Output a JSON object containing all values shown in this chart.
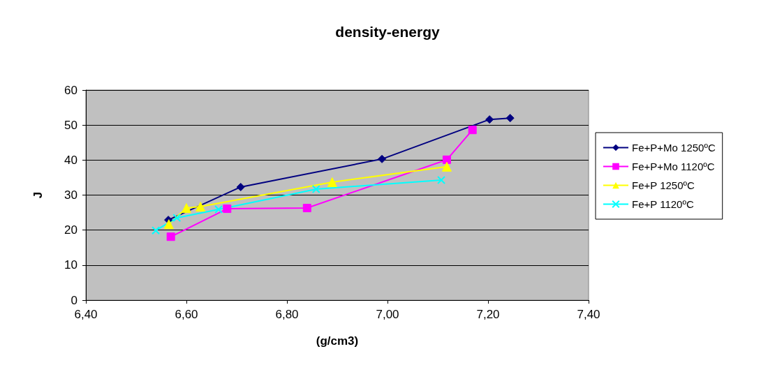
{
  "chart_data": {
    "type": "line",
    "title": "density-energy",
    "xlabel": "(g/cm3)",
    "ylabel": "J",
    "xlim": [
      6.4,
      7.4
    ],
    "xticks": [
      {
        "value": 6.4,
        "label": "6,40"
      },
      {
        "value": 6.6,
        "label": "6,60"
      },
      {
        "value": 6.8,
        "label": "6,80"
      },
      {
        "value": 7.0,
        "label": "7,00"
      },
      {
        "value": 7.2,
        "label": "7,20"
      },
      {
        "value": 7.4,
        "label": "7,40"
      }
    ],
    "ylim": [
      0,
      60
    ],
    "yticks": [
      0,
      10,
      20,
      30,
      40,
      50,
      60
    ],
    "grid": "y",
    "legend": "right",
    "series": [
      {
        "name": "Fe+P+Mo 1250ºC",
        "color": "#000080",
        "marker": "diamond",
        "x": [
          6.564,
          6.708,
          6.989,
          7.203,
          7.244
        ],
        "values": [
          22.9,
          32.3,
          40.3,
          51.6,
          52.0
        ]
      },
      {
        "name": "Fe+P+Mo 1120ºC",
        "color": "#ff00ff",
        "marker": "square",
        "x": [
          6.569,
          6.681,
          6.84,
          7.118,
          7.169
        ],
        "values": [
          18.1,
          26.1,
          26.3,
          40.1,
          48.6
        ]
      },
      {
        "name": "Fe+P 1250ºC",
        "color": "#ffff00",
        "marker": "triangle",
        "x": [
          6.565,
          6.6,
          6.628,
          6.89,
          7.118
        ],
        "values": [
          21.7,
          26.3,
          26.7,
          33.7,
          38.1
        ]
      },
      {
        "name": "Fe+P 1120ºC",
        "color": "#00ffff",
        "marker": "cross",
        "x": [
          6.539,
          6.581,
          6.664,
          6.858,
          7.107
        ],
        "values": [
          19.9,
          23.5,
          25.9,
          31.7,
          34.3
        ]
      }
    ]
  }
}
